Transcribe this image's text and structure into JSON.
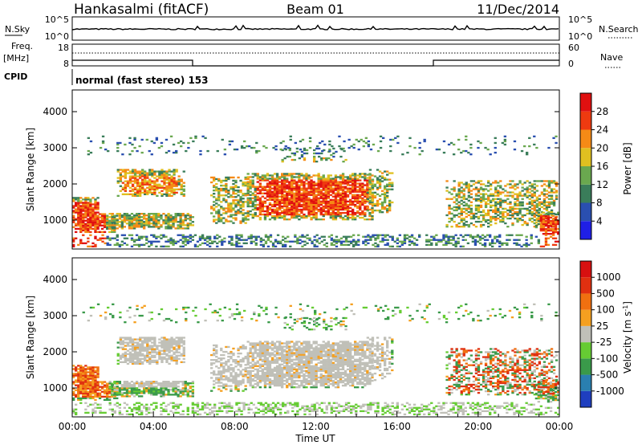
{
  "header": {
    "station": "Hankasalmi (fitACF)",
    "beam": "Beam 01",
    "date": "11/Dec/2014"
  },
  "noise_panel": {
    "left_label": "N.Sky",
    "right_label": "N.Search",
    "ticks": [
      "10^5",
      "10^0"
    ]
  },
  "freq_panel": {
    "left_label_1": "Freq.",
    "left_label_2": "[MHz]",
    "left_ticks": [
      "18",
      "8"
    ],
    "right_label": "Nave",
    "right_ticks": [
      "60",
      "0"
    ]
  },
  "cpid": {
    "label": "CPID",
    "text": "normal (fast stereo) 153"
  },
  "time_axis": {
    "title": "Time UT",
    "ticks": [
      "00:00",
      "04:00",
      "08:00",
      "12:00",
      "16:00",
      "20:00",
      "00:00"
    ]
  },
  "chart_data": [
    {
      "type": "heatmap",
      "name": "power",
      "ylabel": "Slant Range [km]",
      "yticks": [
        "1000",
        "2000",
        "3000",
        "4000"
      ],
      "ylim": [
        200,
        4600
      ],
      "xlim_hours": [
        0,
        24
      ],
      "colorbar": {
        "label": "Power [dB]",
        "ticks": [
          "4",
          "8",
          "12",
          "16",
          "20",
          "24",
          "28"
        ],
        "colors": [
          "#1f1fe6",
          "#2a4fb0",
          "#3a7d5a",
          "#6aa84f",
          "#e0c020",
          "#f58a16",
          "#ee3a10",
          "#e01010"
        ]
      }
    },
    {
      "type": "heatmap",
      "name": "velocity",
      "ylabel": "Slant Range [km]",
      "yticks": [
        "1000",
        "2000",
        "3000",
        "4000"
      ],
      "ylim": [
        200,
        4600
      ],
      "xlim_hours": [
        0,
        24
      ],
      "colorbar": {
        "label": "Velocity [m s^-1]",
        "ticks": [
          "1000",
          "500",
          "100",
          "25",
          "-25",
          "-100",
          "-500",
          "-1000"
        ],
        "colors": [
          "#1f3fbf",
          "#2a7fb0",
          "#3a9a4a",
          "#66cc33",
          "#c0c0b8",
          "#f5a020",
          "#f07010",
          "#e03010",
          "#d81010"
        ]
      }
    }
  ]
}
